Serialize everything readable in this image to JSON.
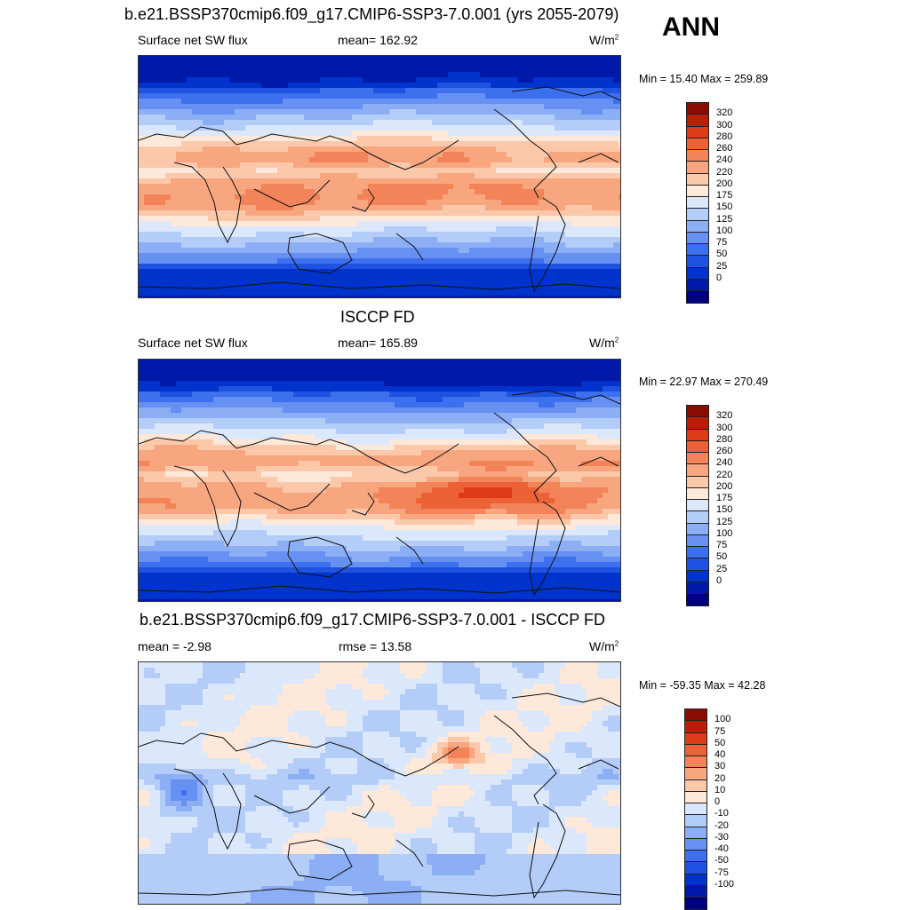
{
  "header": {
    "case_title": "b.e21.BSSP370cmip6.f09_g17.CMIP6-SSP3-7.0.001 (yrs 2055-2079)",
    "season": "ANN"
  },
  "colors": {
    "levels_abs": [
      "#00007f",
      "#0019a8",
      "#0033cc",
      "#1f52e0",
      "#3d70ee",
      "#6690f2",
      "#8caef5",
      "#b3cdf8",
      "#dbe8fb",
      "#fde8d9",
      "#fbc8aa",
      "#f8a67f",
      "#f38459",
      "#ec6136",
      "#dd3b17",
      "#bb1e08",
      "#8b0d02"
    ],
    "levels_diff": [
      "#00007f",
      "#0019a8",
      "#0033cc",
      "#1f52e0",
      "#3d70ee",
      "#6690f2",
      "#8caef5",
      "#b3cdf8",
      "#dbe8fb",
      "#fde8d9",
      "#fbc8aa",
      "#f8a67f",
      "#f38459",
      "#ec6136",
      "#dd3b17",
      "#bb1e08",
      "#8b0d02"
    ]
  },
  "chart_data": [
    {
      "type": "heatmap",
      "title": "b.e21.BSSP370cmip6.f09_g17.CMIP6-SSP3-7.0.001 (yrs 2055-2079)",
      "left_label": "Surface net SW flux",
      "center_label": "mean= 162.92",
      "units": "W/m",
      "units_sup": "2",
      "minmax": "Min =  15.40 Max = 259.89",
      "mean": 162.92,
      "min": 15.4,
      "max": 259.89,
      "colorbar_labels": [
        "320",
        "300",
        "280",
        "260",
        "240",
        "220",
        "200",
        "175",
        "150",
        "125",
        "100",
        "75",
        "50",
        "25",
        "0"
      ]
    },
    {
      "type": "heatmap",
      "title": "ISCCP FD",
      "left_label": "Surface net SW flux",
      "center_label": "mean= 165.89",
      "units": "W/m",
      "units_sup": "2",
      "minmax": "Min =  22.97 Max = 270.49",
      "mean": 165.89,
      "min": 22.97,
      "max": 270.49,
      "colorbar_labels": [
        "320",
        "300",
        "280",
        "260",
        "240",
        "220",
        "200",
        "175",
        "150",
        "125",
        "100",
        "75",
        "50",
        "25",
        "0"
      ]
    },
    {
      "type": "heatmap",
      "title": "b.e21.BSSP370cmip6.f09_g17.CMIP6-SSP3-7.0.001 - ISCCP FD",
      "left_label": "mean =  -2.98",
      "center_label": "rmse =  13.58",
      "units": "W/m",
      "units_sup": "2",
      "minmax": "Min = -59.35 Max =  42.28",
      "mean": -2.98,
      "rmse": 13.58,
      "min": -59.35,
      "max": 42.28,
      "colorbar_labels": [
        "100",
        "75",
        "50",
        "40",
        "30",
        "20",
        "10",
        "0",
        "-10",
        "-20",
        "-30",
        "-40",
        "-50",
        "-75",
        "-100"
      ]
    }
  ]
}
